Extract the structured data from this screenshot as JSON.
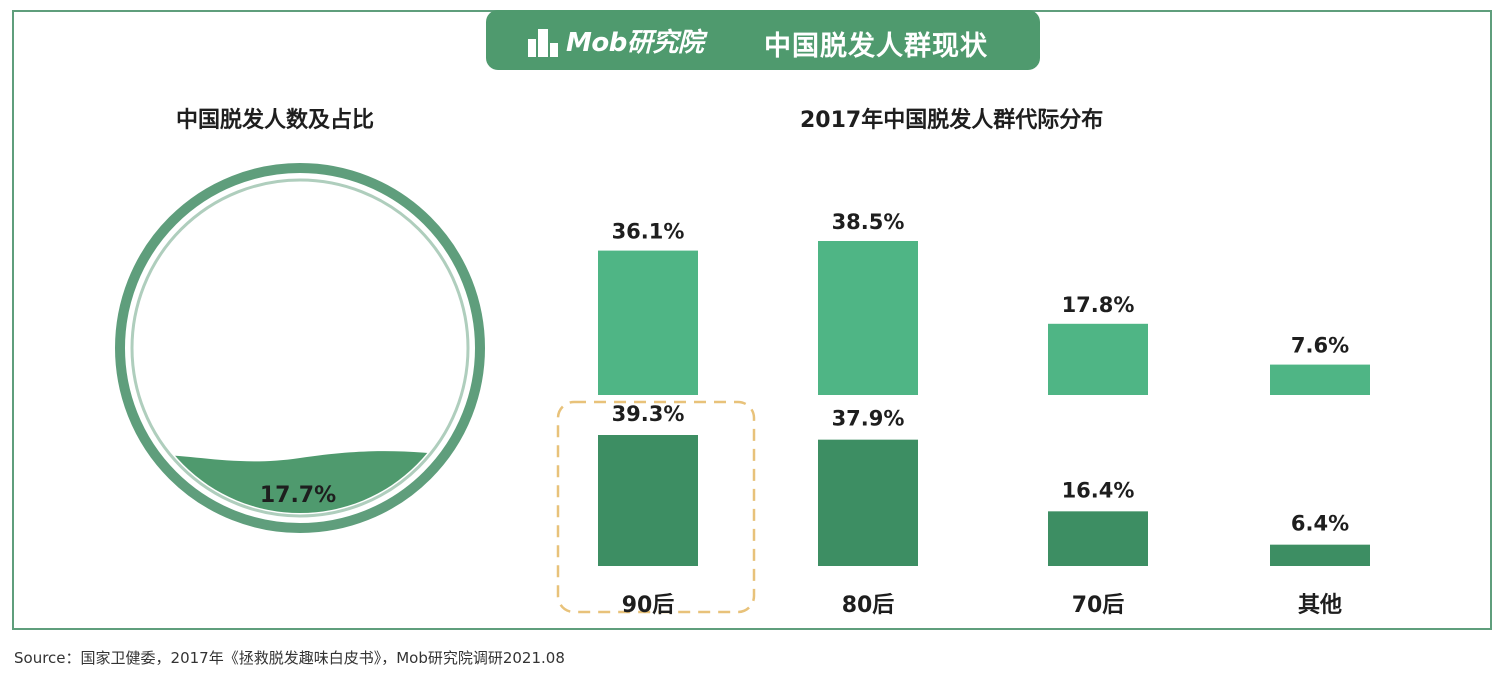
{
  "header": {
    "logo_text": "Mob研究院",
    "title": "中国脱发人群现状"
  },
  "left_chart": {
    "title": "中国脱发人数及占比",
    "percent_label": "17.7%",
    "fill_fraction": 0.177
  },
  "chart_data": {
    "type": "bar",
    "title": "2017年中国脱发人群代际分布",
    "categories": [
      "90后",
      "80后",
      "70后",
      "其他"
    ],
    "series": [
      {
        "values": [
          36.1,
          38.5,
          17.8,
          7.6
        ],
        "labels": [
          "36.1%",
          "38.5%",
          "17.8%",
          "7.6%"
        ]
      },
      {
        "values": [
          39.3,
          37.9,
          16.4,
          6.4
        ],
        "labels": [
          "39.3%",
          "37.9%",
          "16.4%",
          "6.4%"
        ]
      }
    ],
    "highlight_category": "90后",
    "ylim": [
      0,
      45
    ]
  },
  "colors": {
    "primary": "#4f9a6e",
    "light_bar": "#4fb585",
    "dark_bar": "#3d8e63",
    "ring": "#5f9e7c",
    "highlight": "#e8c27a"
  },
  "source": "Source：国家卫健委，2017年《拯救脱发趣味白皮书》，Mob研究院调研2021.08"
}
